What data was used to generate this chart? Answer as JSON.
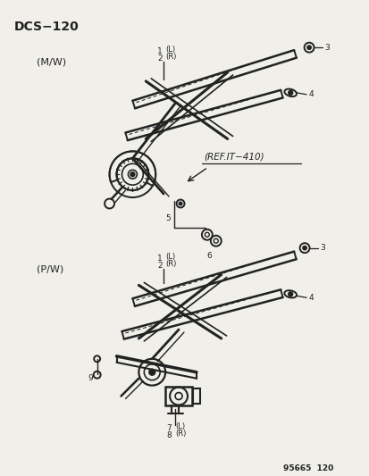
{
  "title": "DCS−120",
  "bg_color": "#f0efea",
  "line_color": "#222222",
  "text_color": "#222222",
  "label_mw": "(M/W)",
  "label_pw": "(P/W)",
  "ref_label": "(REF.IT−410)",
  "footer": "95665  120",
  "figw": 4.14,
  "figh": 5.33,
  "dpi": 100
}
